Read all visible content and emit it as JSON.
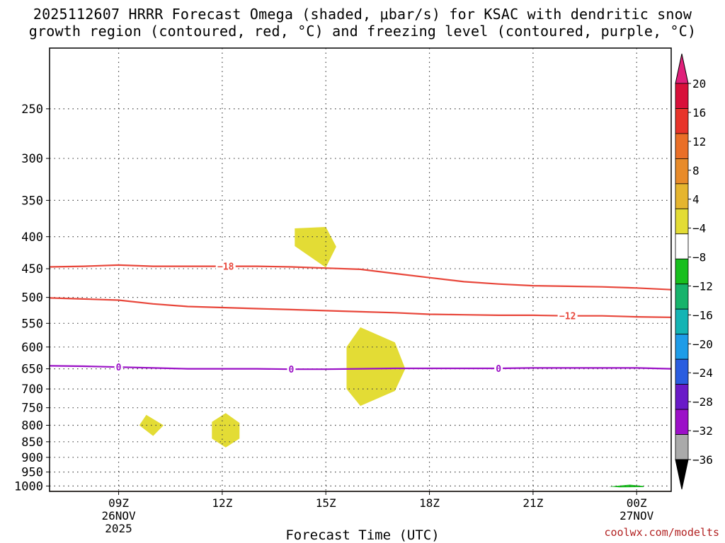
{
  "title": {
    "line1": "2025112607 HRRR Forecast Omega (shaded, μbar/s) for KSAC with dendritic snow",
    "line2": "growth region (contoured, red, °C) and freezing level (contoured, purple, °C)"
  },
  "credit": "coolwx.com/modelts",
  "chart_data": {
    "type": "contour",
    "title": "2025112607 HRRR Forecast Omega (shaded, μbar/s) for KSAC with dendritic snow growth region (contoured, red, °C) and freezing level (contoured, purple, °C)",
    "xlabel": "Forecast Time (UTC)",
    "ylabel": "",
    "x_ticks": [
      {
        "x": 9,
        "label": [
          "09Z",
          "26NOV",
          "2025"
        ]
      },
      {
        "x": 12,
        "label": [
          "12Z"
        ]
      },
      {
        "x": 15,
        "label": [
          "15Z"
        ]
      },
      {
        "x": 18,
        "label": [
          "18Z"
        ]
      },
      {
        "x": 21,
        "label": [
          "21Z"
        ]
      },
      {
        "x": 24,
        "label": [
          "00Z",
          "27NOV"
        ]
      }
    ],
    "xlim": [
      7,
      25
    ],
    "y_scale": "log",
    "y_inverted": true,
    "ylim": [
      1020,
      200
    ],
    "y_ticks": [
      250,
      300,
      350,
      400,
      450,
      500,
      550,
      600,
      650,
      700,
      750,
      800,
      850,
      900,
      950,
      1000
    ],
    "grid": true,
    "surface_pressure": 1018,
    "colorbar": {
      "labels": [
        "20",
        "16",
        "12",
        "8",
        "4",
        "−4",
        "−8",
        "−12",
        "−16",
        "−20",
        "−24",
        "−28",
        "−32",
        "−36"
      ],
      "colors": [
        "#d8103a",
        "#e8342a",
        "#ea6f28",
        "#e88b2a",
        "#e5b52f",
        "#e3dc35",
        "#ffffff",
        "#18bf1e",
        "#17b36b",
        "#14b4b4",
        "#1e9ce8",
        "#2a5de0",
        "#6a1ac8",
        "#9c10c8",
        "#aaaaaa"
      ],
      "top_arrow_color": "#e0207a",
      "bottom_arrow_color": "#000000"
    },
    "contours": [
      {
        "name": "−18",
        "color": "#e8463a",
        "label": "−18",
        "label_x": 12.1,
        "points": [
          [
            7,
            447
          ],
          [
            8,
            446
          ],
          [
            9,
            444
          ],
          [
            10,
            446
          ],
          [
            11,
            446
          ],
          [
            12,
            446
          ],
          [
            13,
            446
          ],
          [
            14,
            447
          ],
          [
            15,
            449
          ],
          [
            16,
            451
          ],
          [
            17,
            458
          ],
          [
            18,
            465
          ],
          [
            19,
            472
          ],
          [
            20,
            476
          ],
          [
            21,
            479
          ],
          [
            22,
            480
          ],
          [
            23,
            481
          ],
          [
            24,
            483
          ],
          [
            25,
            486
          ]
        ]
      },
      {
        "name": "−12",
        "color": "#e8463a",
        "label": "−12",
        "label_x": 22.0,
        "points": [
          [
            7,
            501
          ],
          [
            8,
            503
          ],
          [
            9,
            505
          ],
          [
            10,
            512
          ],
          [
            11,
            517
          ],
          [
            12,
            519
          ],
          [
            13,
            521
          ],
          [
            14,
            523
          ],
          [
            15,
            525
          ],
          [
            16,
            527
          ],
          [
            17,
            529
          ],
          [
            18,
            532
          ],
          [
            19,
            533
          ],
          [
            20,
            534
          ],
          [
            21,
            534
          ],
          [
            22,
            535
          ],
          [
            23,
            535
          ],
          [
            24,
            537
          ],
          [
            25,
            538
          ]
        ]
      },
      {
        "name": "0",
        "color": "#9a10c6",
        "label": "0",
        "label_pts": [
          9.0,
          14.0,
          20.0
        ],
        "points": [
          [
            7,
            643
          ],
          [
            8,
            644
          ],
          [
            9,
            646
          ],
          [
            10,
            648
          ],
          [
            11,
            650
          ],
          [
            12,
            650
          ],
          [
            13,
            650
          ],
          [
            14,
            651
          ],
          [
            15,
            651
          ],
          [
            16,
            650
          ],
          [
            17,
            649
          ],
          [
            18,
            649
          ],
          [
            19,
            649
          ],
          [
            20,
            649
          ],
          [
            21,
            648
          ],
          [
            22,
            648
          ],
          [
            23,
            648
          ],
          [
            24,
            648
          ],
          [
            25,
            650
          ]
        ]
      }
    ],
    "shaded_regions": [
      {
        "value": "4 to 8",
        "color": "#e3dc35",
        "points": [
          [
            14.1,
            388
          ],
          [
            15.0,
            386
          ],
          [
            15.3,
            415
          ],
          [
            15.0,
            448
          ],
          [
            14.1,
            414
          ]
        ]
      },
      {
        "value": "4 to 8",
        "color": "#e3dc35",
        "points": [
          [
            16.0,
            558
          ],
          [
            17.0,
            590
          ],
          [
            17.3,
            650
          ],
          [
            17.0,
            705
          ],
          [
            16.0,
            745
          ],
          [
            15.6,
            700
          ],
          [
            15.6,
            600
          ]
        ]
      },
      {
        "value": "4 to 8",
        "color": "#e3dc35",
        "points": [
          [
            9.8,
            770
          ],
          [
            10.3,
            800
          ],
          [
            10.0,
            832
          ],
          [
            9.6,
            800
          ]
        ]
      },
      {
        "value": "4 to 8",
        "color": "#e3dc35",
        "points": [
          [
            12.1,
            765
          ],
          [
            12.5,
            793
          ],
          [
            12.5,
            840
          ],
          [
            12.1,
            868
          ],
          [
            11.7,
            840
          ],
          [
            11.7,
            790
          ]
        ]
      },
      {
        "value": "−4 to −8",
        "color": "#18bf1e",
        "points": [
          [
            23.2,
            1002
          ],
          [
            23.8,
            995
          ],
          [
            24.2,
            1000
          ],
          [
            24.2,
            1004
          ],
          [
            23.5,
            1005
          ]
        ]
      }
    ]
  }
}
